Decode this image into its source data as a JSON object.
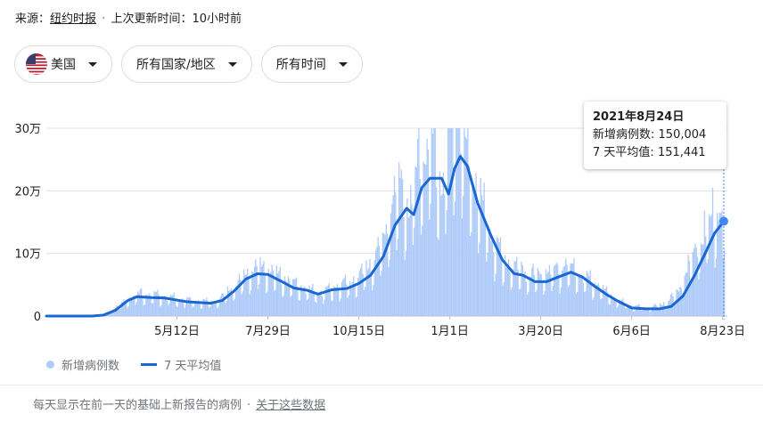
{
  "source": {
    "prefix": "来源：",
    "name": "纽约时报",
    "separator": "·",
    "updated": "上次更新时间：10小时前"
  },
  "filters": {
    "country": "美国",
    "region": "所有国家/地区",
    "time": "所有时间",
    "flag_icon": "us-flag-icon",
    "caret_icon": "dropdown-caret-icon"
  },
  "tooltip": {
    "date": "2021年8月24日",
    "cases_label": "新增病例数:",
    "cases_value": "150,004",
    "avg_label": "7 天平均值:",
    "avg_value": "151,441"
  },
  "legend": {
    "cases": "新增病例数",
    "average": "7 天平均值"
  },
  "footer": {
    "note": "每天显示在前一天的基础上新报告的病例",
    "separator": "·",
    "link": "关于这些数据"
  },
  "colors": {
    "bars": "#aecbfa",
    "line": "#1967d2",
    "grid": "#e0e0e0"
  },
  "chart_data": {
    "type": "bar",
    "title": "",
    "xlabel": "",
    "ylabel": "",
    "y_ticks": [
      {
        "value": 0,
        "label": "0"
      },
      {
        "value": 100000,
        "label": "10万"
      },
      {
        "value": 200000,
        "label": "20万"
      },
      {
        "value": 300000,
        "label": "30万"
      }
    ],
    "ylim": [
      0,
      300000
    ],
    "x_range": [
      "2020-01-21",
      "2021-08-24"
    ],
    "x_ticks": [
      {
        "date": "2020-05-12",
        "label": "5月12日"
      },
      {
        "date": "2020-07-29",
        "label": "7月29日"
      },
      {
        "date": "2020-10-15",
        "label": "10月15日"
      },
      {
        "date": "2021-01-01",
        "label": "1月1日"
      },
      {
        "date": "2021-03-20",
        "label": "3月20日"
      },
      {
        "date": "2021-06-06",
        "label": "6月6日"
      },
      {
        "date": "2021-08-23",
        "label": "8月23日"
      }
    ],
    "grid": true,
    "highlight": {
      "date": "2021-08-24",
      "cases": 150004,
      "average": 151441
    },
    "series": [
      {
        "name": "新增病例数",
        "kind": "bar",
        "points": [
          [
            "2020-01-21",
            0
          ],
          [
            "2020-02-15",
            0
          ],
          [
            "2020-03-01",
            200
          ],
          [
            "2020-03-10",
            1000
          ],
          [
            "2020-03-20",
            12000
          ],
          [
            "2020-03-31",
            26000
          ],
          [
            "2020-04-10",
            33000
          ],
          [
            "2020-04-24",
            30000
          ],
          [
            "2020-05-12",
            25000
          ],
          [
            "2020-06-01",
            21000
          ],
          [
            "2020-06-15",
            21000
          ],
          [
            "2020-07-01",
            45000
          ],
          [
            "2020-07-15",
            67000
          ],
          [
            "2020-07-25",
            70000
          ],
          [
            "2020-08-10",
            55000
          ],
          [
            "2020-08-25",
            42000
          ],
          [
            "2020-09-10",
            33000
          ],
          [
            "2020-09-25",
            42000
          ],
          [
            "2020-10-10",
            50000
          ],
          [
            "2020-10-25",
            75000
          ],
          [
            "2020-11-05",
            110000
          ],
          [
            "2020-11-13",
            165000
          ],
          [
            "2020-11-20",
            185000
          ],
          [
            "2020-11-27",
            145000
          ],
          [
            "2020-12-04",
            215000
          ],
          [
            "2020-12-11",
            230000
          ],
          [
            "2020-12-18",
            245000
          ],
          [
            "2020-12-25",
            170000
          ],
          [
            "2021-01-02",
            280000
          ],
          [
            "2021-01-08",
            295000
          ],
          [
            "2021-01-15",
            230000
          ],
          [
            "2021-01-25",
            170000
          ],
          [
            "2021-02-05",
            120000
          ],
          [
            "2021-02-15",
            80000
          ],
          [
            "2021-02-25",
            70000
          ],
          [
            "2021-03-10",
            58000
          ],
          [
            "2021-03-25",
            62000
          ],
          [
            "2021-04-10",
            72000
          ],
          [
            "2021-04-25",
            58000
          ],
          [
            "2021-05-10",
            40000
          ],
          [
            "2021-05-25",
            22000
          ],
          [
            "2021-06-06",
            14000
          ],
          [
            "2021-06-20",
            12000
          ],
          [
            "2021-07-04",
            18000
          ],
          [
            "2021-07-15",
            35000
          ],
          [
            "2021-07-25",
            75000
          ],
          [
            "2021-08-05",
            110000
          ],
          [
            "2021-08-15",
            145000
          ],
          [
            "2021-08-24",
            150004
          ]
        ]
      },
      {
        "name": "7 天平均值",
        "kind": "line",
        "points": [
          [
            "2020-01-21",
            0
          ],
          [
            "2020-02-29",
            0
          ],
          [
            "2020-03-10",
            1500
          ],
          [
            "2020-03-20",
            9000
          ],
          [
            "2020-03-31",
            25000
          ],
          [
            "2020-04-08",
            31000
          ],
          [
            "2020-04-20",
            29500
          ],
          [
            "2020-05-01",
            29000
          ],
          [
            "2020-05-12",
            25500
          ],
          [
            "2020-05-20",
            23000
          ],
          [
            "2020-06-01",
            21500
          ],
          [
            "2020-06-10",
            20500
          ],
          [
            "2020-06-20",
            25000
          ],
          [
            "2020-06-30",
            40000
          ],
          [
            "2020-07-10",
            59000
          ],
          [
            "2020-07-20",
            67500
          ],
          [
            "2020-07-29",
            66500
          ],
          [
            "2020-08-10",
            55000
          ],
          [
            "2020-08-20",
            45000
          ],
          [
            "2020-09-01",
            41000
          ],
          [
            "2020-09-10",
            35000
          ],
          [
            "2020-09-22",
            42000
          ],
          [
            "2020-10-05",
            44000
          ],
          [
            "2020-10-15",
            52000
          ],
          [
            "2020-10-25",
            65000
          ],
          [
            "2020-11-05",
            95000
          ],
          [
            "2020-11-15",
            145000
          ],
          [
            "2020-11-25",
            172000
          ],
          [
            "2020-12-01",
            162000
          ],
          [
            "2020-12-08",
            205000
          ],
          [
            "2020-12-15",
            220000
          ],
          [
            "2020-12-25",
            220000
          ],
          [
            "2020-12-31",
            195000
          ],
          [
            "2021-01-05",
            235000
          ],
          [
            "2021-01-10",
            255000
          ],
          [
            "2021-01-16",
            240000
          ],
          [
            "2021-01-25",
            180000
          ],
          [
            "2021-02-05",
            130000
          ],
          [
            "2021-02-15",
            90000
          ],
          [
            "2021-02-25",
            68000
          ],
          [
            "2021-03-05",
            65000
          ],
          [
            "2021-03-15",
            55000
          ],
          [
            "2021-03-25",
            55000
          ],
          [
            "2021-04-05",
            63000
          ],
          [
            "2021-04-15",
            70000
          ],
          [
            "2021-04-25",
            62000
          ],
          [
            "2021-05-05",
            48000
          ],
          [
            "2021-05-15",
            35000
          ],
          [
            "2021-05-25",
            24000
          ],
          [
            "2021-06-06",
            13000
          ],
          [
            "2021-06-18",
            11500
          ],
          [
            "2021-06-30",
            11500
          ],
          [
            "2021-07-10",
            15500
          ],
          [
            "2021-07-20",
            32000
          ],
          [
            "2021-07-30",
            65000
          ],
          [
            "2021-08-08",
            100000
          ],
          [
            "2021-08-16",
            132000
          ],
          [
            "2021-08-24",
            151441
          ]
        ]
      }
    ]
  }
}
